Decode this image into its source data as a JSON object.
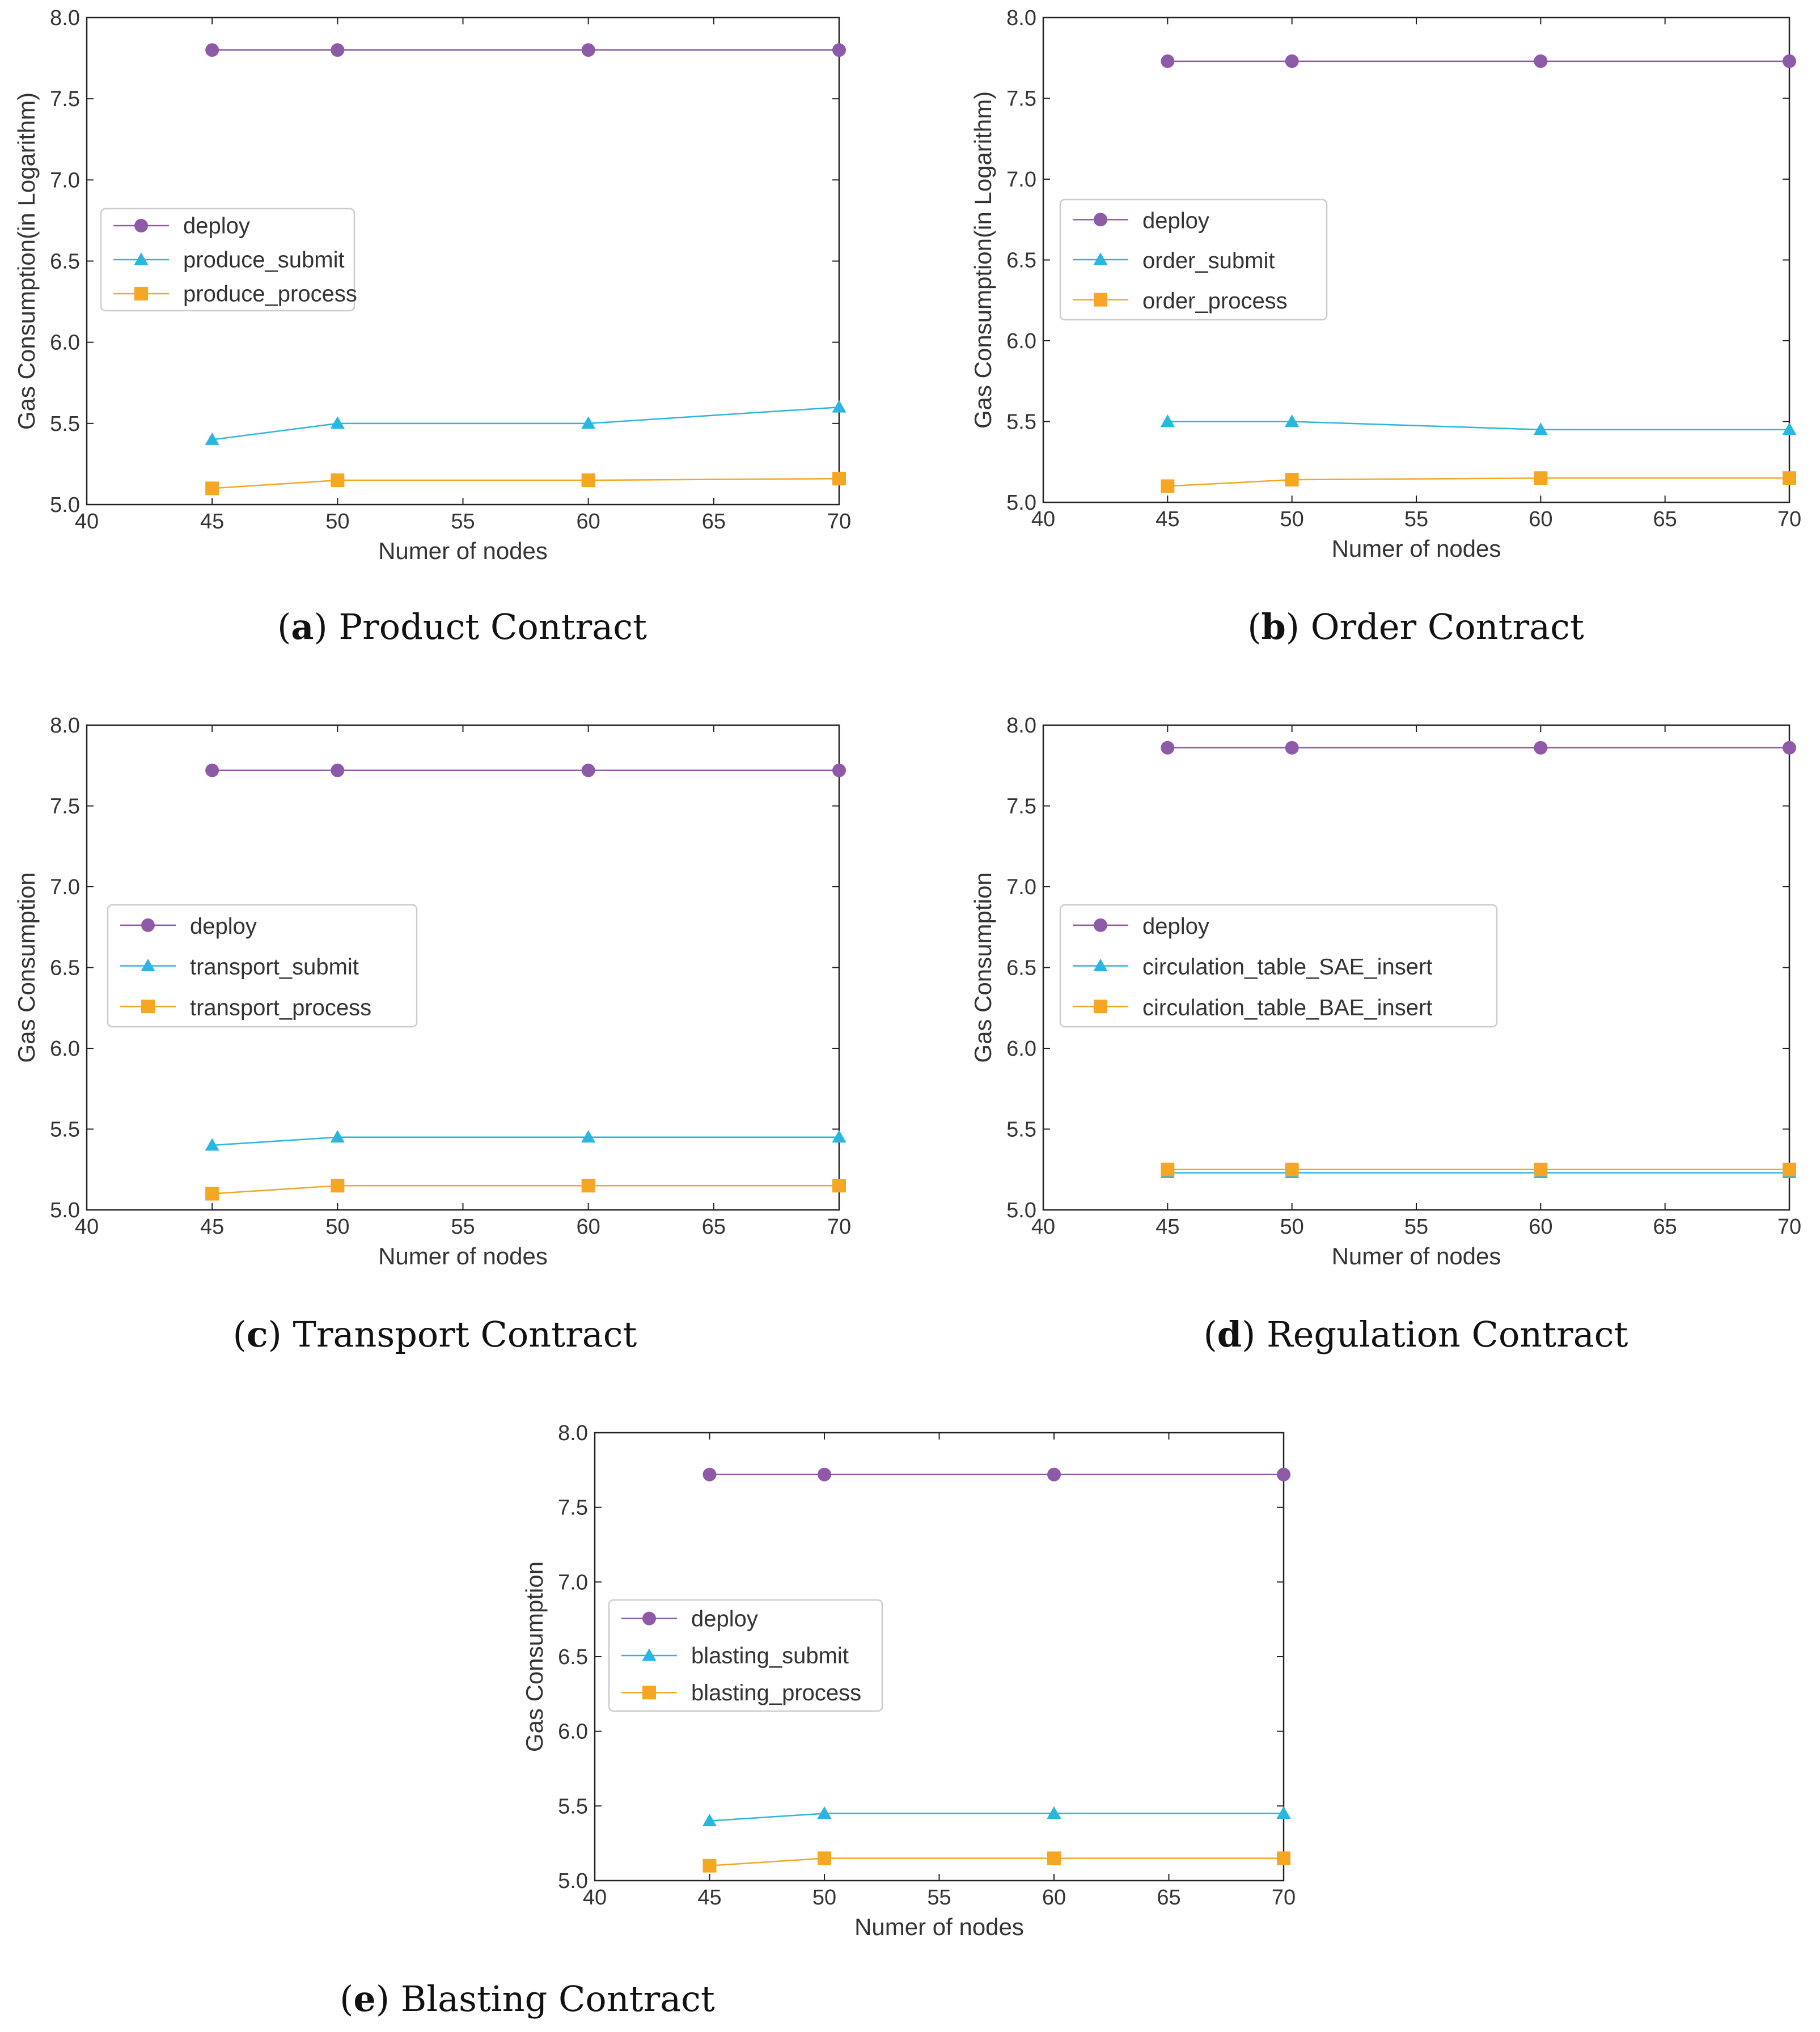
{
  "colors": {
    "deploy": "#8e5aa8",
    "submit": "#29b6e0",
    "process": "#f5a623",
    "axis": "#222222",
    "legend_border": "#cccccc"
  },
  "chart_data": [
    {
      "type": "line",
      "caption_letter": "a",
      "caption_text": "Product Contract",
      "xlabel": "Numer of nodes",
      "ylabel": "Gas Consumption(in Logarithm)",
      "xlim": [
        40,
        70
      ],
      "ylim": [
        5.0,
        8.0
      ],
      "xticks": [
        "40",
        "45",
        "50",
        "55",
        "60",
        "65",
        "70"
      ],
      "yticks": [
        "5.0",
        "5.5",
        "6.0",
        "6.5",
        "7.0",
        "7.5",
        "8.0"
      ],
      "legend_position": "center-left",
      "series": [
        {
          "name": "deploy",
          "marker": "circle",
          "x": [
            45,
            50,
            60,
            70
          ],
          "values": [
            7.8,
            7.8,
            7.8,
            7.8
          ]
        },
        {
          "name": "produce_submit",
          "marker": "triangle",
          "x": [
            45,
            50,
            60,
            70
          ],
          "values": [
            5.4,
            5.5,
            5.5,
            5.6
          ]
        },
        {
          "name": "produce_process",
          "marker": "square",
          "x": [
            45,
            50,
            60,
            70
          ],
          "values": [
            5.1,
            5.15,
            5.15,
            5.16
          ]
        }
      ]
    },
    {
      "type": "line",
      "caption_letter": "b",
      "caption_text": "Order Contract",
      "xlabel": "Numer of nodes",
      "ylabel": "Gas Consumption(in Logarithm)",
      "xlim": [
        40,
        70
      ],
      "ylim": [
        5.0,
        8.0
      ],
      "xticks": [
        "40",
        "45",
        "50",
        "55",
        "60",
        "65",
        "70"
      ],
      "yticks": [
        "5.0",
        "5.5",
        "6.0",
        "6.5",
        "7.0",
        "7.5",
        "8.0"
      ],
      "legend_position": "center-left",
      "series": [
        {
          "name": "deploy",
          "marker": "circle",
          "x": [
            45,
            50,
            60,
            70
          ],
          "values": [
            7.73,
            7.73,
            7.73,
            7.73
          ]
        },
        {
          "name": "order_submit",
          "marker": "triangle",
          "x": [
            45,
            50,
            60,
            70
          ],
          "values": [
            5.5,
            5.5,
            5.45,
            5.45
          ]
        },
        {
          "name": "order_process",
          "marker": "square",
          "x": [
            45,
            50,
            60,
            70
          ],
          "values": [
            5.1,
            5.14,
            5.15,
            5.15
          ]
        }
      ]
    },
    {
      "type": "line",
      "caption_letter": "c",
      "caption_text": "Transport Contract",
      "xlabel": "Numer of nodes",
      "ylabel": "Gas Consumption",
      "xlim": [
        40,
        70
      ],
      "ylim": [
        5.0,
        8.0
      ],
      "xticks": [
        "40",
        "45",
        "50",
        "55",
        "60",
        "65",
        "70"
      ],
      "yticks": [
        "5.0",
        "5.5",
        "6.0",
        "6.5",
        "7.0",
        "7.5",
        "8.0"
      ],
      "legend_position": "center-left",
      "series": [
        {
          "name": "deploy",
          "marker": "circle",
          "x": [
            45,
            50,
            60,
            70
          ],
          "values": [
            7.72,
            7.72,
            7.72,
            7.72
          ]
        },
        {
          "name": "transport_submit",
          "marker": "triangle",
          "x": [
            45,
            50,
            60,
            70
          ],
          "values": [
            5.4,
            5.45,
            5.45,
            5.45
          ]
        },
        {
          "name": "transport_process",
          "marker": "square",
          "x": [
            45,
            50,
            60,
            70
          ],
          "values": [
            5.1,
            5.15,
            5.15,
            5.15
          ]
        }
      ]
    },
    {
      "type": "line",
      "caption_letter": "d",
      "caption_text": "Regulation Contract",
      "xlabel": "Numer of nodes",
      "ylabel": "Gas Consumption",
      "xlim": [
        40,
        70
      ],
      "ylim": [
        5.0,
        8.0
      ],
      "xticks": [
        "40",
        "45",
        "50",
        "55",
        "60",
        "65",
        "70"
      ],
      "yticks": [
        "5.0",
        "5.5",
        "6.0",
        "6.5",
        "7.0",
        "7.5",
        "8.0"
      ],
      "legend_position": "center-left",
      "series": [
        {
          "name": "deploy",
          "marker": "circle",
          "x": [
            45,
            50,
            60,
            70
          ],
          "values": [
            7.86,
            7.86,
            7.86,
            7.86
          ]
        },
        {
          "name": "circulation_table_SAE_insert",
          "marker": "triangle",
          "x": [
            45,
            50,
            60,
            70
          ],
          "values": [
            5.23,
            5.23,
            5.23,
            5.23
          ]
        },
        {
          "name": "circulation_table_BAE_insert",
          "marker": "square",
          "x": [
            45,
            50,
            60,
            70
          ],
          "values": [
            5.25,
            5.25,
            5.25,
            5.25
          ]
        }
      ]
    },
    {
      "type": "line",
      "caption_letter": "e",
      "caption_text": "Blasting Contract",
      "xlabel": "Numer of nodes",
      "ylabel": "Gas Consumption",
      "xlim": [
        40,
        70
      ],
      "ylim": [
        5.0,
        8.0
      ],
      "xticks": [
        "40",
        "45",
        "50",
        "55",
        "60",
        "65",
        "70"
      ],
      "yticks": [
        "5.0",
        "5.5",
        "6.0",
        "6.5",
        "7.0",
        "7.5",
        "8.0"
      ],
      "legend_position": "center-left",
      "series": [
        {
          "name": "deploy",
          "marker": "circle",
          "x": [
            45,
            50,
            60,
            70
          ],
          "values": [
            7.72,
            7.72,
            7.72,
            7.72
          ]
        },
        {
          "name": "blasting_submit",
          "marker": "triangle",
          "x": [
            45,
            50,
            60,
            70
          ],
          "values": [
            5.4,
            5.45,
            5.45,
            5.45
          ]
        },
        {
          "name": "blasting_process",
          "marker": "square",
          "x": [
            45,
            50,
            60,
            70
          ],
          "values": [
            5.1,
            5.15,
            5.15,
            5.15
          ]
        }
      ]
    }
  ]
}
